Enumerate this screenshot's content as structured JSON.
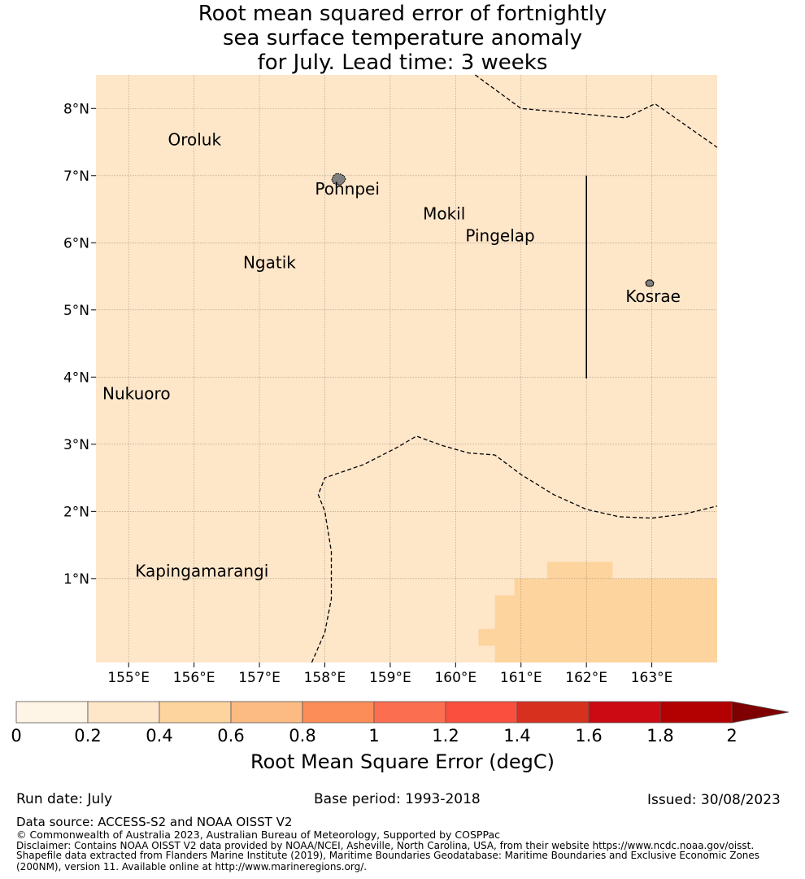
{
  "title": {
    "line1": "Root mean squared error of fortnightly",
    "line2": "sea surface temperature anomaly",
    "line3": "for July. Lead time: 3 weeks"
  },
  "map": {
    "lon_range": [
      154.5,
      164.0
    ],
    "lat_range": [
      -0.25,
      8.5
    ],
    "lon_ticks": [
      {
        "value": 155,
        "label": "155°E"
      },
      {
        "value": 156,
        "label": "156°E"
      },
      {
        "value": 157,
        "label": "157°E"
      },
      {
        "value": 158,
        "label": "158°E"
      },
      {
        "value": 159,
        "label": "159°E"
      },
      {
        "value": 160,
        "label": "160°E"
      },
      {
        "value": 161,
        "label": "161°E"
      },
      {
        "value": 162,
        "label": "162°E"
      },
      {
        "value": 163,
        "label": "163°E"
      }
    ],
    "lat_ticks": [
      {
        "value": 1,
        "label": "1°N"
      },
      {
        "value": 2,
        "label": "2°N"
      },
      {
        "value": 3,
        "label": "3°N"
      },
      {
        "value": 4,
        "label": "4°N"
      },
      {
        "value": 5,
        "label": "5°N"
      },
      {
        "value": 6,
        "label": "6°N"
      },
      {
        "value": 7,
        "label": "7°N"
      },
      {
        "value": 8,
        "label": "8°N"
      }
    ],
    "background_color": "#fee6c9",
    "field_color": "#fdd49e",
    "field_cells": [
      {
        "lon": [
          161.4,
          162.4
        ],
        "lat": [
          1.0,
          1.25
        ]
      },
      {
        "lon": [
          160.9,
          164.0
        ],
        "lat": [
          0.75,
          1.0
        ]
      },
      {
        "lon": [
          160.6,
          164.0
        ],
        "lat": [
          0.0,
          0.75
        ]
      },
      {
        "lon": [
          160.35,
          160.6
        ],
        "lat": [
          0.0,
          0.25
        ]
      },
      {
        "lon": [
          160.6,
          164.0
        ],
        "lat": [
          -0.25,
          0.0
        ]
      }
    ],
    "places": [
      {
        "name": "Oroluk",
        "lon": 155.6,
        "lat": 7.45
      },
      {
        "name": "Pohnpei",
        "lon": 157.85,
        "lat": 6.72
      },
      {
        "name": "Mokil",
        "lon": 159.5,
        "lat": 6.35
      },
      {
        "name": "Pingelap",
        "lon": 160.15,
        "lat": 6.02
      },
      {
        "name": "Ngatik",
        "lon": 156.75,
        "lat": 5.62
      },
      {
        "name": "Kosrae",
        "lon": 162.6,
        "lat": 5.12
      },
      {
        "name": "Nukuoro",
        "lon": 154.6,
        "lat": 3.67
      },
      {
        "name": "Kapingamarangi",
        "lon": 155.1,
        "lat": 1.03
      }
    ],
    "boundaries": [
      {
        "style": "dashed",
        "points": [
          [
            160.3,
            8.5
          ],
          [
            161.0,
            8.0
          ],
          [
            162.6,
            7.86
          ],
          [
            163.05,
            8.07
          ],
          [
            164.0,
            7.42
          ]
        ]
      },
      {
        "style": "dashed",
        "points": [
          [
            157.8,
            -0.25
          ],
          [
            158.0,
            0.2
          ],
          [
            158.1,
            0.7
          ],
          [
            158.1,
            1.4
          ],
          [
            158.0,
            2.0
          ],
          [
            157.9,
            2.25
          ],
          [
            158.0,
            2.5
          ],
          [
            158.6,
            2.7
          ],
          [
            159.1,
            2.95
          ],
          [
            159.4,
            3.12
          ],
          [
            159.8,
            2.98
          ],
          [
            160.2,
            2.87
          ],
          [
            160.6,
            2.84
          ],
          [
            161.0,
            2.55
          ],
          [
            161.5,
            2.25
          ],
          [
            162.0,
            2.03
          ],
          [
            162.5,
            1.92
          ],
          [
            163.0,
            1.9
          ],
          [
            163.5,
            1.96
          ],
          [
            164.0,
            2.08
          ]
        ]
      },
      {
        "style": "solid",
        "points": [
          [
            162.0,
            7.0
          ],
          [
            162.0,
            3.98
          ]
        ]
      }
    ]
  },
  "colorbar": {
    "title": "Root Mean Square Error (degC)",
    "colors": [
      "#fff5e6",
      "#fee6c9",
      "#fdd49e",
      "#fdbb84",
      "#fc8d59",
      "#fc6e50",
      "#fa4f3e",
      "#d7301f",
      "#cb0a14",
      "#b30000"
    ],
    "extend_color": "#7f0000",
    "ticks": [
      "0",
      "0.2",
      "0.4",
      "0.6",
      "0.8",
      "1",
      "1.2",
      "1.4",
      "1.6",
      "1.8",
      "2"
    ]
  },
  "footer": {
    "run_date": "Run date: July",
    "base_period": "Base period: 1993-2018",
    "issued": "Issued: 30/08/2023",
    "data_source": "Data source: ACCESS-S2 and NOAA OISST V2",
    "copyright": "© Commonwealth of Australia 2023, Australian Bureau of Meteorology, Supported by COSPPac",
    "disclaimer1": "Disclaimer: Contains NOAA OISST V2 data provided by NOAA/NCEI, Asheville, North Carolina, USA, from their website https://www.ncdc.noaa.gov/oisst.",
    "disclaimer2": "Shapefile data extracted from Flanders Marine Institute (2019), Maritime Boundaries Geodatabase: Maritime Boundaries and Exclusive Economic Zones",
    "disclaimer3": "(200NM), version 11. Available online at http://www.marineregions.org/."
  }
}
